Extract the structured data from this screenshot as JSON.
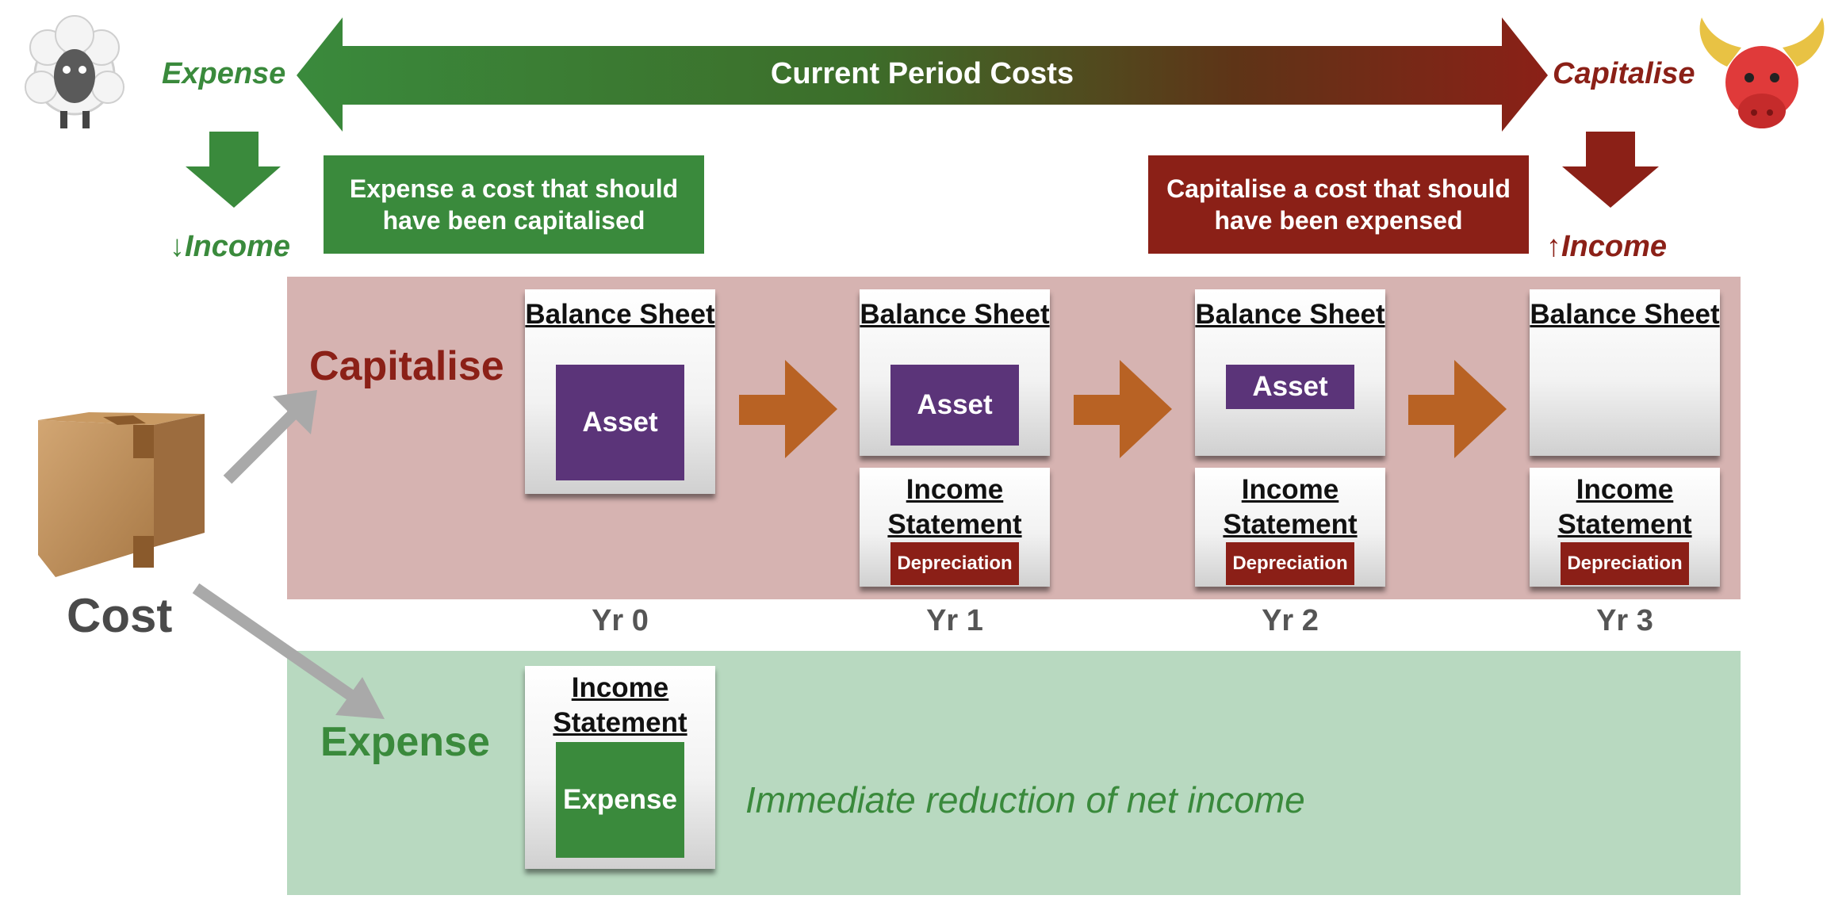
{
  "top_arrow": {
    "label": "Current Period Costs",
    "left_label": "Expense",
    "right_label": "Capitalise"
  },
  "left_effect": {
    "label": "↓Income"
  },
  "right_effect": {
    "label": "↑Income"
  },
  "callouts": {
    "left": "Expense a cost that should have been capitalised",
    "right": "Capitalise a cost that should have been expensed"
  },
  "cost_label": "Cost",
  "capitalise_row": {
    "label": "Capitalise",
    "years": [
      {
        "balance_title": "Balance Sheet",
        "asset": "Asset"
      },
      {
        "balance_title": "Balance Sheet",
        "asset": "Asset",
        "income_title": "Income Statement",
        "dep": "Depreciation"
      },
      {
        "balance_title": "Balance Sheet",
        "asset": "Asset",
        "income_title": "Income Statement",
        "dep": "Depreciation"
      },
      {
        "balance_title": "Balance Sheet",
        "income_title": "Income Statement",
        "dep": "Depreciation"
      }
    ]
  },
  "year_labels": [
    "Yr 0",
    "Yr 1",
    "Yr 2",
    "Yr 3"
  ],
  "expense_row": {
    "label": "Expense",
    "income_title": "Income Statement",
    "box": "Expense",
    "note": "Immediate reduction of net income"
  },
  "colors": {
    "green": "#3a8a3c",
    "red": "#8b2017",
    "purple": "#5b3479",
    "orange": "#b86224",
    "cap_band": "#d6b3b1",
    "exp_band": "#b8d9c0"
  },
  "icons": {
    "left": "sheep-icon",
    "right": "bull-icon",
    "cost": "cardboard-box-icon"
  }
}
